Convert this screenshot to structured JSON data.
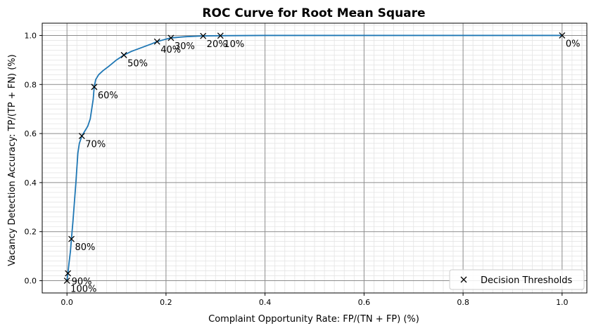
{
  "chart_data": {
    "type": "line",
    "title": "ROC Curve for Root Mean Square",
    "xlabel": "Complaint Opportunity Rate: FP/(TN + FP) (%)",
    "ylabel": "Vacancy Detection Accuracy: TP/(TP + FN) (%)",
    "xlim": [
      -0.05,
      1.05
    ],
    "ylim": [
      -0.05,
      1.05
    ],
    "x_ticks": [
      "0.0",
      "0.2",
      "0.4",
      "0.6",
      "0.8",
      "1.0"
    ],
    "y_ticks": [
      "0.0",
      "0.2",
      "0.4",
      "0.6",
      "0.8",
      "1.0"
    ],
    "grid": "major and minor",
    "legend": {
      "position": "lower-right",
      "entries": [
        "Decision Thresholds"
      ]
    },
    "colors": {
      "curve": "#1f77b4",
      "markers": "#000000",
      "major_grid": "#8c8c8c",
      "minor_grid": "#e4e4e4"
    },
    "series": [
      {
        "values": [
          [
            0.0,
            0.0
          ],
          [
            0.002,
            0.03
          ],
          [
            0.004,
            0.07
          ],
          [
            0.007,
            0.12
          ],
          [
            0.009,
            0.17
          ],
          [
            0.012,
            0.24
          ],
          [
            0.015,
            0.32
          ],
          [
            0.018,
            0.4
          ],
          [
            0.02,
            0.46
          ],
          [
            0.022,
            0.52
          ],
          [
            0.025,
            0.56
          ],
          [
            0.03,
            0.59
          ],
          [
            0.036,
            0.61
          ],
          [
            0.042,
            0.63
          ],
          [
            0.047,
            0.66
          ],
          [
            0.05,
            0.7
          ],
          [
            0.053,
            0.74
          ],
          [
            0.055,
            0.79
          ],
          [
            0.058,
            0.82
          ],
          [
            0.064,
            0.84
          ],
          [
            0.072,
            0.855
          ],
          [
            0.085,
            0.875
          ],
          [
            0.1,
            0.9
          ],
          [
            0.115,
            0.92
          ],
          [
            0.13,
            0.935
          ],
          [
            0.15,
            0.95
          ],
          [
            0.17,
            0.965
          ],
          [
            0.182,
            0.975
          ],
          [
            0.2,
            0.985
          ],
          [
            0.21,
            0.99
          ],
          [
            0.24,
            0.995
          ],
          [
            0.275,
            0.998
          ],
          [
            0.31,
            0.999
          ],
          [
            0.4,
            1.0
          ],
          [
            0.6,
            1.0
          ],
          [
            0.8,
            1.0
          ],
          [
            1.0,
            1.0
          ]
        ]
      },
      {
        "name": "Decision Thresholds",
        "points": [
          {
            "x": 0.0,
            "y": 0.0,
            "label": "100%"
          },
          {
            "x": 0.002,
            "y": 0.03,
            "label": "90%"
          },
          {
            "x": 0.009,
            "y": 0.17,
            "label": "80%"
          },
          {
            "x": 0.03,
            "y": 0.59,
            "label": "70%"
          },
          {
            "x": 0.055,
            "y": 0.79,
            "label": "60%"
          },
          {
            "x": 0.115,
            "y": 0.92,
            "label": "50%"
          },
          {
            "x": 0.182,
            "y": 0.975,
            "label": "40%"
          },
          {
            "x": 0.21,
            "y": 0.99,
            "label": "30%"
          },
          {
            "x": 0.275,
            "y": 0.998,
            "label": "20%"
          },
          {
            "x": 0.31,
            "y": 0.999,
            "label": "10%"
          },
          {
            "x": 1.0,
            "y": 1.0,
            "label": "0%"
          }
        ]
      }
    ]
  }
}
